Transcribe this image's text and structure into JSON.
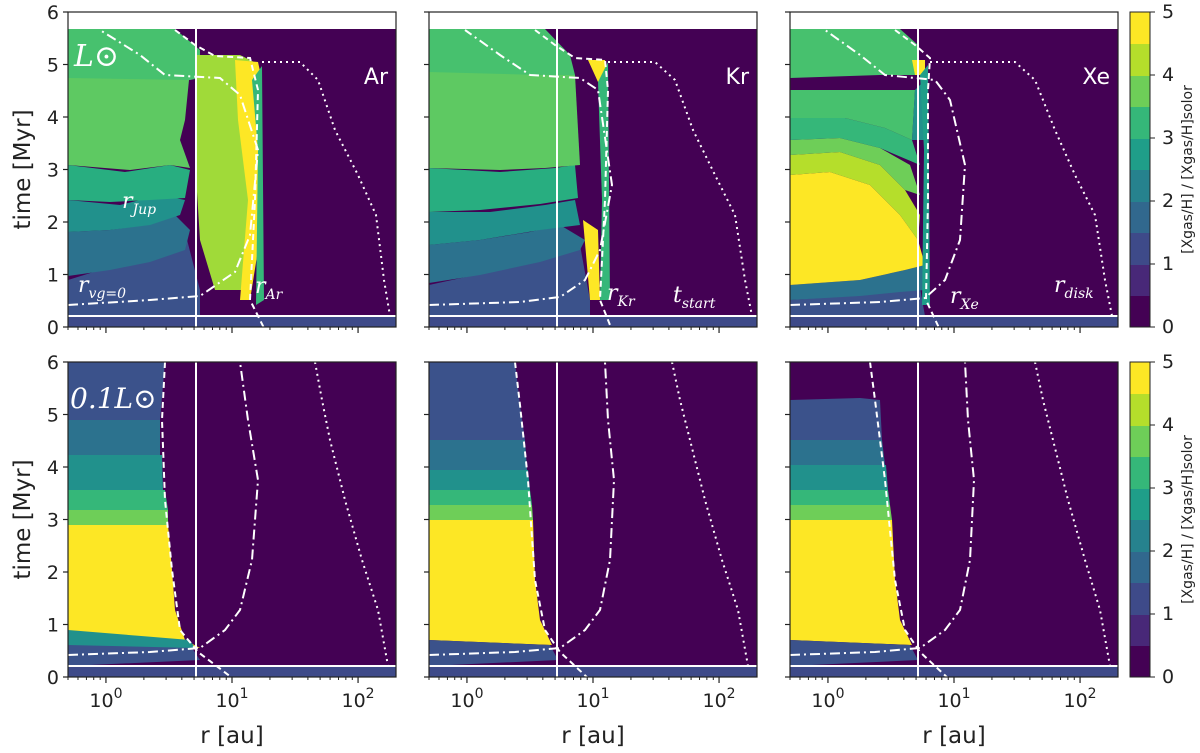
{
  "chart_data": {
    "type": "heatmap",
    "layout": "2 rows x 3 columns",
    "colormap": "viridis",
    "xlabel": "r [au]",
    "ylabel": "time [Myr]",
    "xscale": "log",
    "xlim": [
      0.5,
      200
    ],
    "ylim": [
      0,
      6
    ],
    "x_ticks": [
      "10^0",
      "10^1",
      "10^2"
    ],
    "y_ticks": [
      "0",
      "1",
      "2",
      "3",
      "4",
      "5",
      "6"
    ],
    "colorbar": {
      "label": "[Xgas/H] / [Xgas/H]solor",
      "ticks": [
        "0",
        "1",
        "2",
        "3",
        "4",
        "5"
      ],
      "range": [
        0,
        5
      ],
      "levels": 10
    },
    "reference_lines": {
      "r_jupiter_au": 5.2,
      "t_start_myr": 0.26
    },
    "row_labels": [
      "L⊙",
      "0.1L⊙"
    ],
    "column_species": [
      "Ar",
      "Kr",
      "Xe"
    ],
    "annotations": {
      "r_jup": "r_Jup",
      "r_vg0": "r_vg=0",
      "r_Ar": "r_Ar",
      "r_Kr": "r_Kr",
      "r_Xe": "r_Xe",
      "t_start": "t_start",
      "r_disk": "r_disk"
    },
    "panels": [
      {
        "row": 0,
        "col": 0,
        "species": "Ar",
        "luminosity": "L⊙",
        "snowline_au": [
          [
            0.5,
            12.5
          ],
          [
            1.0,
            13.2
          ],
          [
            2.0,
            13.8
          ],
          [
            3.0,
            14.2
          ],
          [
            4.0,
            14.6
          ],
          [
            5.0,
            15.0
          ]
        ],
        "peak_band_au": [
          8.5,
          13.5
        ],
        "peak_value": 5,
        "inner_plateau": 3.5
      },
      {
        "row": 0,
        "col": 1,
        "species": "Kr",
        "luminosity": "L⊙",
        "snowline_au": [
          [
            0.5,
            12.0
          ],
          [
            1.0,
            12.5
          ],
          [
            2.0,
            13.0
          ],
          [
            3.0,
            13.3
          ],
          [
            4.0,
            13.6
          ],
          [
            5.0,
            14.0
          ]
        ],
        "peak_band_au": [
          10.5,
          13.0
        ],
        "peak_value": 5,
        "inner_plateau": 4.0
      },
      {
        "row": 0,
        "col": 2,
        "species": "Xe",
        "luminosity": "L⊙",
        "snowline_au": [
          [
            0.5,
            7.5
          ],
          [
            1.0,
            8.0
          ],
          [
            2.0,
            8.3
          ],
          [
            3.0,
            8.6
          ],
          [
            4.0,
            8.9
          ],
          [
            5.0,
            9.2
          ]
        ],
        "peak_band_au": [
          6.5,
          8.0
        ],
        "peak_value": 5,
        "inner_plateau": 5.0
      },
      {
        "row": 1,
        "col": 0,
        "species": "Ar",
        "luminosity": "0.1L⊙",
        "snowline_au": [
          [
            0.5,
            5.5
          ],
          [
            1.0,
            4.8
          ],
          [
            3.0,
            4.1
          ],
          [
            4.5,
            3.8
          ],
          [
            6.0,
            3.6
          ]
        ],
        "peak_value": 5,
        "inner_plateau": 5.0
      },
      {
        "row": 1,
        "col": 1,
        "species": "Kr",
        "luminosity": "0.1L⊙",
        "snowline_au": [
          [
            0.5,
            5.3
          ],
          [
            1.0,
            4.6
          ],
          [
            3.0,
            3.9
          ],
          [
            4.5,
            3.5
          ],
          [
            5.5,
            3.2
          ],
          [
            6.0,
            3.0
          ]
        ],
        "peak_value": 5,
        "inner_plateau": 5.0
      },
      {
        "row": 1,
        "col": 2,
        "species": "Xe",
        "luminosity": "0.1L⊙",
        "snowline_au": [
          [
            0.5,
            5.0
          ],
          [
            1.0,
            4.3
          ],
          [
            3.0,
            3.5
          ],
          [
            4.5,
            3.0
          ],
          [
            6.0,
            2.6
          ]
        ],
        "peak_value": 5,
        "inner_plateau": 5.0
      }
    ]
  }
}
